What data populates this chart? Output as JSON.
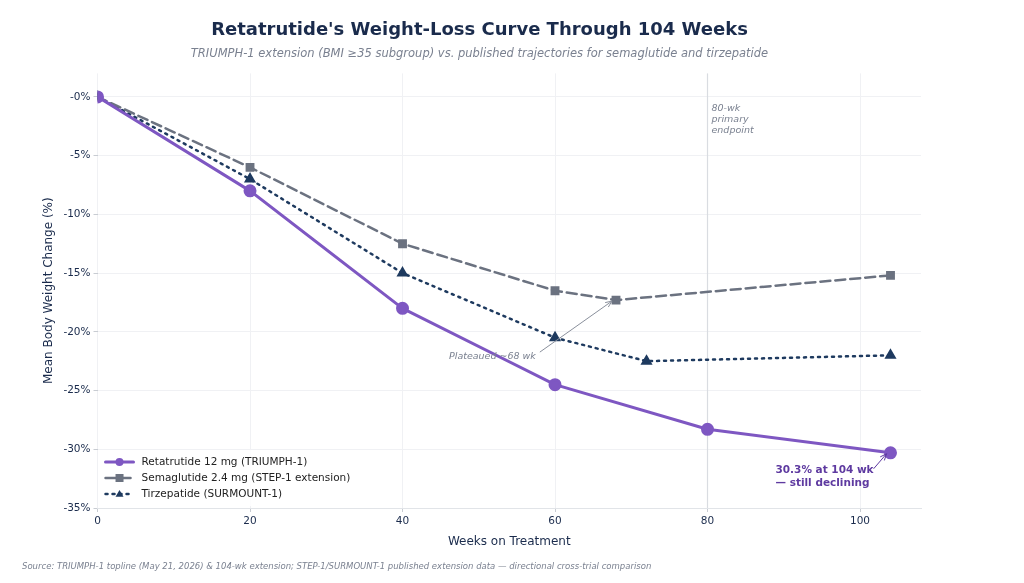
{
  "chart_data": {
    "type": "line",
    "title": "Retatrutide's Weight-Loss Curve Through 104 Weeks",
    "subtitle": "TRIUMPH-1 extension (BMI ≥35 subgroup) vs. published trajectories for semaglutide and tirzepatide",
    "xlabel": "Weeks on Treatment",
    "ylabel": "Mean Body Weight Change (%)",
    "series": [
      {
        "name": "Retatrutide 12 mg (TRIUMPH-1)",
        "color": "#7e57c2",
        "marker": "circle",
        "line_style": "solid",
        "x": [
          0,
          20,
          40,
          60,
          80,
          104
        ],
        "values": [
          0,
          -8,
          -18,
          -24.5,
          -28.3,
          -30.3
        ]
      },
      {
        "name": "Semaglutide 2.4 mg (STEP-1 extension)",
        "color": "#6b7280",
        "marker": "square",
        "line_style": "dashed",
        "x": [
          0,
          20,
          40,
          60,
          68,
          104
        ],
        "values": [
          0,
          -6,
          -12.5,
          -16.5,
          -17.3,
          -15.2
        ]
      },
      {
        "name": "Tirzepatide (SURMOUNT-1)",
        "color": "#1e3a5f",
        "marker": "triangle",
        "line_style": "dotted",
        "x": [
          0,
          20,
          40,
          60,
          72,
          104
        ],
        "values": [
          0,
          -7,
          -15,
          -20.5,
          -22.5,
          -22
        ]
      }
    ],
    "xlim": [
      0,
      108
    ],
    "xticks": [
      0,
      20,
      40,
      60,
      80,
      100
    ],
    "ylim": [
      -35,
      2
    ],
    "yticks": [
      {
        "value": -35,
        "label": "-35%"
      },
      {
        "value": -30,
        "label": "-30%"
      },
      {
        "value": -25,
        "label": "-25%"
      },
      {
        "value": -20,
        "label": "-20%"
      },
      {
        "value": -15,
        "label": "-15%"
      },
      {
        "value": -10,
        "label": "-10%"
      },
      {
        "value": -5,
        "label": "-5%"
      },
      {
        "value": 0,
        "label": "-0%"
      }
    ],
    "ref_lines": [
      {
        "axis": "x",
        "value": 80,
        "label": "80-wk primary endpoint",
        "color": "#d9dce1"
      }
    ],
    "annotations": [
      {
        "text": "Plateaued ~68 wk",
        "x": 68,
        "y": -17.3
      },
      {
        "text": "30.3% at 104 wk — still declining",
        "x": 104,
        "y": -30.3
      },
      "Source: TRIUMPH-1 topline (May 21, 2026) & 104-wk extension; STEP-1/SURMOUNT-1 published extension data — directional cross-trial comparison"
    ],
    "grid": true,
    "legend": "bottom left"
  }
}
